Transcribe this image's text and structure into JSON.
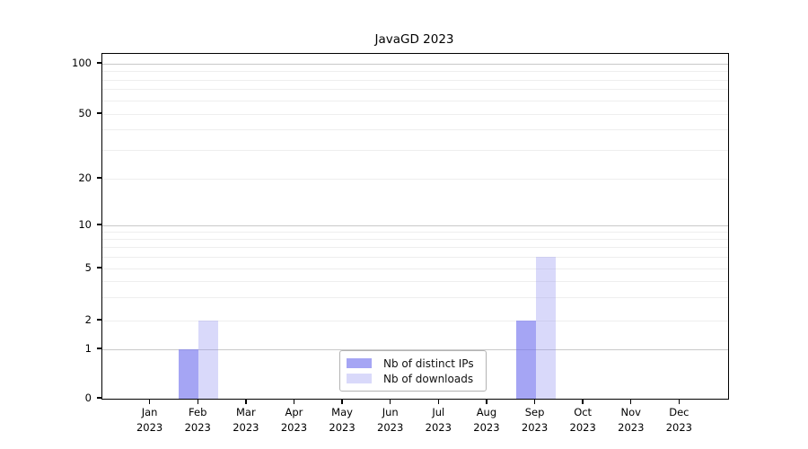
{
  "title": "JavaGD 2023",
  "chart_data": {
    "type": "bar",
    "title": "JavaGD 2023",
    "categories": [
      "Jan",
      "Feb",
      "Mar",
      "Apr",
      "May",
      "Jun",
      "Jul",
      "Aug",
      "Sep",
      "Oct",
      "Nov",
      "Dec"
    ],
    "year_label": "2023",
    "series": [
      {
        "name": "Nb of distinct IPs",
        "color": "rgba(118,118,238,0.66)",
        "values": [
          0,
          1,
          0,
          0,
          0,
          0,
          0,
          0,
          2,
          0,
          0,
          0
        ]
      },
      {
        "name": "Nb of downloads",
        "color": "rgba(150,150,240,0.36)",
        "values": [
          0,
          2,
          0,
          0,
          0,
          0,
          0,
          0,
          6,
          0,
          0,
          0
        ]
      }
    ],
    "xlabel": "",
    "ylabel": "",
    "yticks": [
      0,
      1,
      2,
      5,
      10,
      20,
      50,
      100
    ],
    "ylim": [
      0,
      110
    ],
    "yscale": "log1p",
    "grid": "horizontal",
    "major_gridlines": [
      1,
      10,
      100
    ],
    "minor_gridlines": [
      2,
      3,
      4,
      5,
      6,
      7,
      8,
      9,
      20,
      30,
      40,
      50,
      60,
      70,
      80,
      90
    ],
    "legend_position": "bottom-center-inside"
  }
}
